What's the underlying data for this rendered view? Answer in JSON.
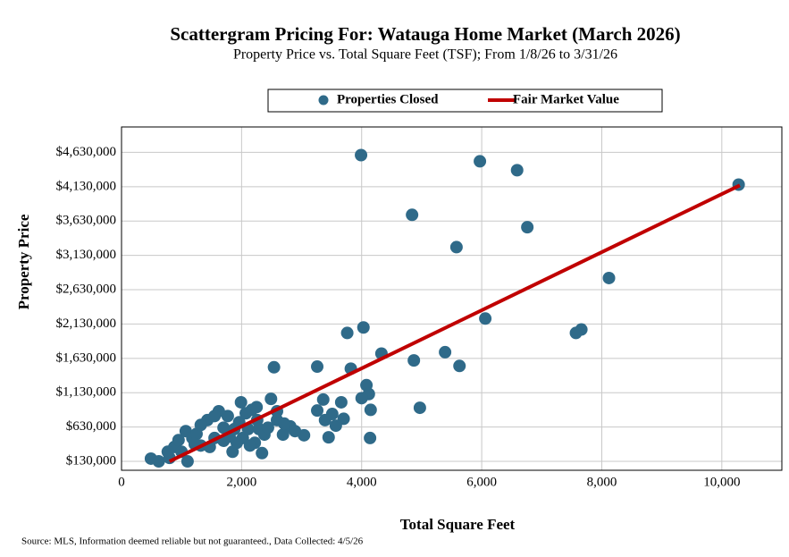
{
  "chart_data": {
    "type": "scatter",
    "title": "Scattergram Pricing For: Watauga Home Market (March 2026)",
    "subtitle": "Property Price vs. Total Square Feet (TSF); From 1/8/26 to 3/31/26",
    "x_label": "Total Square Feet",
    "y_label": "Property Price",
    "source": "Source: MLS, Information deemed reliable but not guaranteed., Data Collected: 4/5/26",
    "xlim": [
      0,
      11000
    ],
    "ylim": [
      0,
      5000000
    ],
    "xticks": [
      0,
      {
        "value": 2000,
        "label": "2,000"
      },
      {
        "value": 4000,
        "label": "4,000"
      },
      {
        "value": 6000,
        "label": "6,000"
      },
      {
        "value": 8000,
        "label": "8,000"
      },
      {
        "value": 10000,
        "label": "10,000"
      }
    ],
    "yticks": [
      {
        "value": 130000,
        "label": "$130,000"
      },
      {
        "value": 630000,
        "label": "$630,000"
      },
      {
        "value": 1130000,
        "label": "$1,130,000"
      },
      {
        "value": 1630000,
        "label": "$1,630,000"
      },
      {
        "value": 2130000,
        "label": "$2,130,000"
      },
      {
        "value": 2630000,
        "label": "$2,630,000"
      },
      {
        "value": 3130000,
        "label": "$3,130,000"
      },
      {
        "value": 3630000,
        "label": "$3,630,000"
      },
      {
        "value": 4130000,
        "label": "$4,130,000"
      },
      {
        "value": 4630000,
        "label": "$4,630,000"
      }
    ],
    "grid": true,
    "series": [
      {
        "name": "Properties Closed",
        "color": "#2f6a89",
        "type": "scatter",
        "x": [
          3990,
          5970,
          6590,
          10280,
          4840,
          6760,
          5580,
          8120,
          6060,
          7660,
          7570,
          4030,
          3760,
          4330,
          5390,
          4870,
          5630,
          3260,
          3820,
          2540,
          4080,
          4120,
          4000,
          3360,
          2490,
          3660,
          4970,
          4150,
          3260,
          3510,
          3700,
          3390,
          3570,
          3450,
          4140,
          3040,
          2590,
          2810,
          2690,
          2340,
          490,
          620,
          800,
          1100,
          880,
          950,
          1070,
          1180,
          1250,
          1320,
          1430,
          1550,
          1620,
          1700,
          1770,
          1850,
          1880,
          1960,
          1990,
          2020,
          2070,
          2110,
          2170,
          2220,
          2260,
          2290,
          2380,
          2440,
          2250,
          1550,
          1320,
          1220,
          1000,
          770,
          1470,
          1700,
          1920,
          2590,
          2710,
          2890,
          2140,
          1800
        ],
        "values": [
          4590000,
          4500000,
          4370000,
          4160000,
          3720000,
          3540000,
          3250000,
          2800000,
          2210000,
          2050000,
          2000000,
          2080000,
          2000000,
          1700000,
          1720000,
          1600000,
          1520000,
          1510000,
          1480000,
          1500000,
          1240000,
          1110000,
          1050000,
          1030000,
          1040000,
          990000,
          910000,
          880000,
          870000,
          820000,
          750000,
          730000,
          650000,
          480000,
          470000,
          510000,
          730000,
          640000,
          520000,
          250000,
          170000,
          130000,
          180000,
          130000,
          340000,
          440000,
          570000,
          470000,
          530000,
          360000,
          730000,
          470000,
          860000,
          620000,
          790000,
          270000,
          600000,
          700000,
          990000,
          470000,
          830000,
          600000,
          880000,
          400000,
          730000,
          600000,
          520000,
          620000,
          920000,
          790000,
          660000,
          380000,
          270000,
          270000,
          340000,
          430000,
          400000,
          860000,
          680000,
          570000,
          360000,
          490000
        ]
      },
      {
        "name": "Fair Market Value",
        "color": "#c00000",
        "type": "line",
        "x": [
          800,
          10300
        ],
        "values": [
          130000,
          4150000
        ]
      }
    ]
  }
}
